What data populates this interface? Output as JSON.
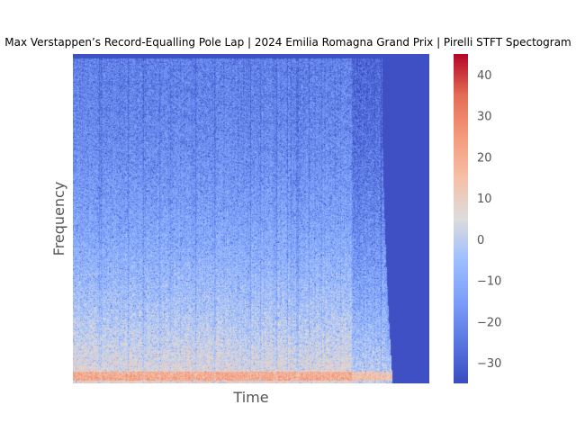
{
  "chart_data": {
    "type": "heatmap",
    "title": "Max Verstappen’s Record-Equalling Pole Lap | 2024 Emilia Romagna Grand Prix | Pirelli STFT Spectogram",
    "xlabel": "Time",
    "ylabel": "Frequency",
    "colormap": "coolwarm",
    "color_range": [
      -35,
      45
    ],
    "colorbar_ticks": [
      -30,
      -20,
      -10,
      0,
      10,
      20,
      30,
      40
    ],
    "colorbar_tick_labels": [
      "−30",
      "−20",
      "−10",
      "0",
      "10",
      "20",
      "30",
      "40"
    ],
    "x_ticks_visible": false,
    "y_ticks_visible": false,
    "signal_end_fraction_of_time": 0.87,
    "background_value": -34,
    "colors": {
      "low": "#3b4cc0",
      "mid": "#dddddd",
      "high": "#b40426"
    }
  }
}
